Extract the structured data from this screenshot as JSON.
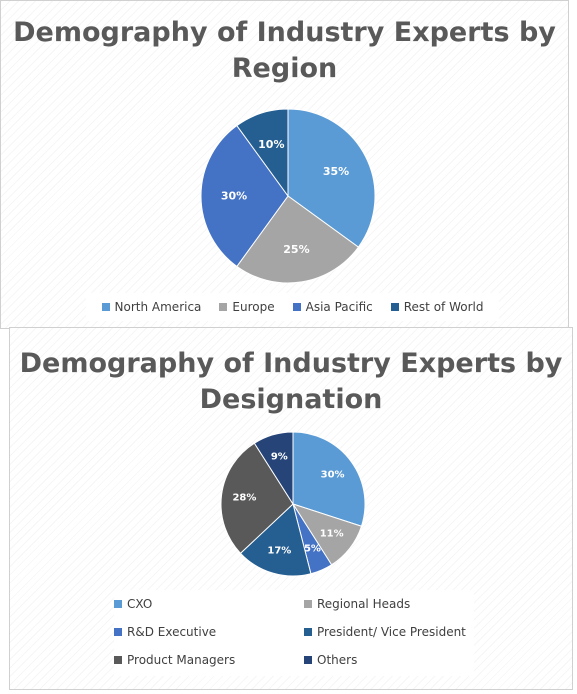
{
  "chart_data": [
    {
      "type": "pie",
      "title": "Demography of Industry Experts by Region",
      "categories": [
        "North America",
        "Europe",
        "Asia Pacific",
        "Rest of World"
      ],
      "values": [
        35,
        25,
        30,
        10
      ],
      "data_labels": [
        "35%",
        "25%",
        "30%",
        "10%"
      ],
      "colors": [
        "#5b9bd5",
        "#a5a5a5",
        "#4472c4",
        "#255e91"
      ],
      "legend_position": "bottom"
    },
    {
      "type": "pie",
      "title": "Demography of Industry Experts by Designation",
      "categories": [
        "CXO",
        "Regional Heads",
        "R&D Executive",
        "President/ Vice President",
        "Product Managers",
        "Others"
      ],
      "values": [
        30,
        11,
        5,
        17,
        28,
        9
      ],
      "data_labels": [
        "30%",
        "11%",
        "5%",
        "17%",
        "28%",
        "9%"
      ],
      "colors": [
        "#5b9bd5",
        "#a5a5a5",
        "#4472c4",
        "#255e91",
        "#595959",
        "#264478"
      ],
      "legend_position": "bottom"
    }
  ]
}
